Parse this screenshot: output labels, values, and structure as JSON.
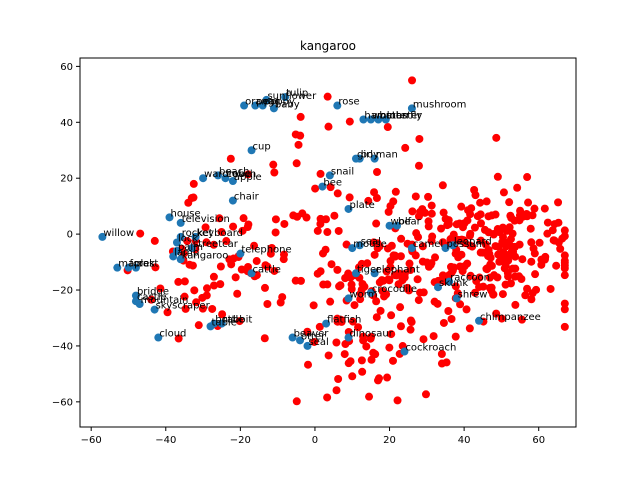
{
  "chart_data": {
    "type": "scatter",
    "title": "kangaroo",
    "xlabel": "",
    "ylabel": "",
    "xlim": [
      -63,
      70
    ],
    "ylim": [
      -69,
      63
    ],
    "xticks": [
      -60,
      -40,
      -20,
      0,
      20,
      40,
      60
    ],
    "yticks": [
      -60,
      -40,
      -20,
      0,
      20,
      40,
      60
    ],
    "grid": false,
    "colors": {
      "labeled": "#1f77b4",
      "other": "#ff0000"
    },
    "labeled_points": [
      {
        "label": "willow",
        "x": -57,
        "y": -1
      },
      {
        "label": "house",
        "x": -39,
        "y": 6
      },
      {
        "label": "television",
        "x": -36,
        "y": 4
      },
      {
        "label": "rocket",
        "x": -36,
        "y": -1
      },
      {
        "label": "keyboard",
        "x": -32,
        "y": -1
      },
      {
        "label": "lock",
        "x": -37,
        "y": -3
      },
      {
        "label": "palm",
        "x": -37,
        "y": -6
      },
      {
        "label": "streetcar",
        "x": -33,
        "y": -5
      },
      {
        "label": "telephone",
        "x": -20,
        "y": -7
      },
      {
        "label": "lamp",
        "x": -38,
        "y": -8
      },
      {
        "label": "kangaroo",
        "x": -36,
        "y": -9
      },
      {
        "label": "maple",
        "x": -53,
        "y": -12
      },
      {
        "label": "forest",
        "x": -50,
        "y": -12
      },
      {
        "label": "oak",
        "x": -48,
        "y": -12
      },
      {
        "label": "cattle",
        "x": -17,
        "y": -14
      },
      {
        "label": "bridge",
        "x": -48,
        "y": -22
      },
      {
        "label": "mountain",
        "x": -47,
        "y": -25
      },
      {
        "label": "castle",
        "x": -48,
        "y": -24
      },
      {
        "label": "skyscraper",
        "x": -43,
        "y": -27
      },
      {
        "label": "bottle",
        "x": -27,
        "y": -32
      },
      {
        "label": "table",
        "x": -28,
        "y": -33
      },
      {
        "label": "rabbit",
        "x": -25,
        "y": -32
      },
      {
        "label": "cloud",
        "x": -42,
        "y": -37
      },
      {
        "label": "cup",
        "x": -17,
        "y": 30
      },
      {
        "label": "chair",
        "x": -22,
        "y": 12
      },
      {
        "label": "beach",
        "x": -26,
        "y": 21
      },
      {
        "label": "wardrobe",
        "x": -30,
        "y": 20
      },
      {
        "label": "couch",
        "x": -24,
        "y": 20
      },
      {
        "label": "apple",
        "x": -22,
        "y": 19
      },
      {
        "label": "orange",
        "x": -19,
        "y": 46
      },
      {
        "label": "pear",
        "x": -16,
        "y": 46
      },
      {
        "label": "poppy",
        "x": -14,
        "y": 46
      },
      {
        "label": "baby",
        "x": -11,
        "y": 45
      },
      {
        "label": "sunflower",
        "x": -13,
        "y": 48
      },
      {
        "label": "tulip",
        "x": -8,
        "y": 49
      },
      {
        "label": "rose",
        "x": 6,
        "y": 46
      },
      {
        "label": "mushroom",
        "x": 26,
        "y": 45
      },
      {
        "label": "butterfly",
        "x": 17,
        "y": 41
      },
      {
        "label": "woman",
        "x": 15,
        "y": 41
      },
      {
        "label": "lobster",
        "x": 19,
        "y": 41
      },
      {
        "label": "hamster",
        "x": 13,
        "y": 41
      },
      {
        "label": "girl",
        "x": 11,
        "y": 27
      },
      {
        "label": "boy",
        "x": 12,
        "y": 27
      },
      {
        "label": "man",
        "x": 16,
        "y": 27
      },
      {
        "label": "snail",
        "x": 4,
        "y": 21
      },
      {
        "label": "bee",
        "x": 2,
        "y": 17
      },
      {
        "label": "plate",
        "x": 9,
        "y": 9
      },
      {
        "label": "bear",
        "x": 22,
        "y": 3
      },
      {
        "label": "wolf",
        "x": 20,
        "y": 3
      },
      {
        "label": "leopard",
        "x": 37,
        "y": -4
      },
      {
        "label": "camel",
        "x": 26,
        "y": -5
      },
      {
        "label": "possum",
        "x": 35,
        "y": -5
      },
      {
        "label": "mouse",
        "x": 10,
        "y": -5
      },
      {
        "label": "seal",
        "x": 12,
        "y": -4
      },
      {
        "label": "tiger",
        "x": 11,
        "y": -14
      },
      {
        "label": "elephant",
        "x": 16,
        "y": -14
      },
      {
        "label": "raccoon",
        "x": 36,
        "y": -17
      },
      {
        "label": "skunk",
        "x": 33,
        "y": -19
      },
      {
        "label": "crocodile",
        "x": 15,
        "y": -21
      },
      {
        "label": "worm",
        "x": 9,
        "y": -23
      },
      {
        "label": "shrew",
        "x": 38,
        "y": -23
      },
      {
        "label": "chimpanzee",
        "x": 44,
        "y": -31
      },
      {
        "label": "flatfish",
        "x": 3,
        "y": -32
      },
      {
        "label": "dinosaur",
        "x": 9,
        "y": -37
      },
      {
        "label": "beaver",
        "x": -6,
        "y": -37
      },
      {
        "label": "otter",
        "x": -4,
        "y": -38
      },
      {
        "label": "seal",
        "x": -2,
        "y": -40
      },
      {
        "label": "cockroach",
        "x": 24,
        "y": -42
      }
    ],
    "other_points_count": 500
  }
}
